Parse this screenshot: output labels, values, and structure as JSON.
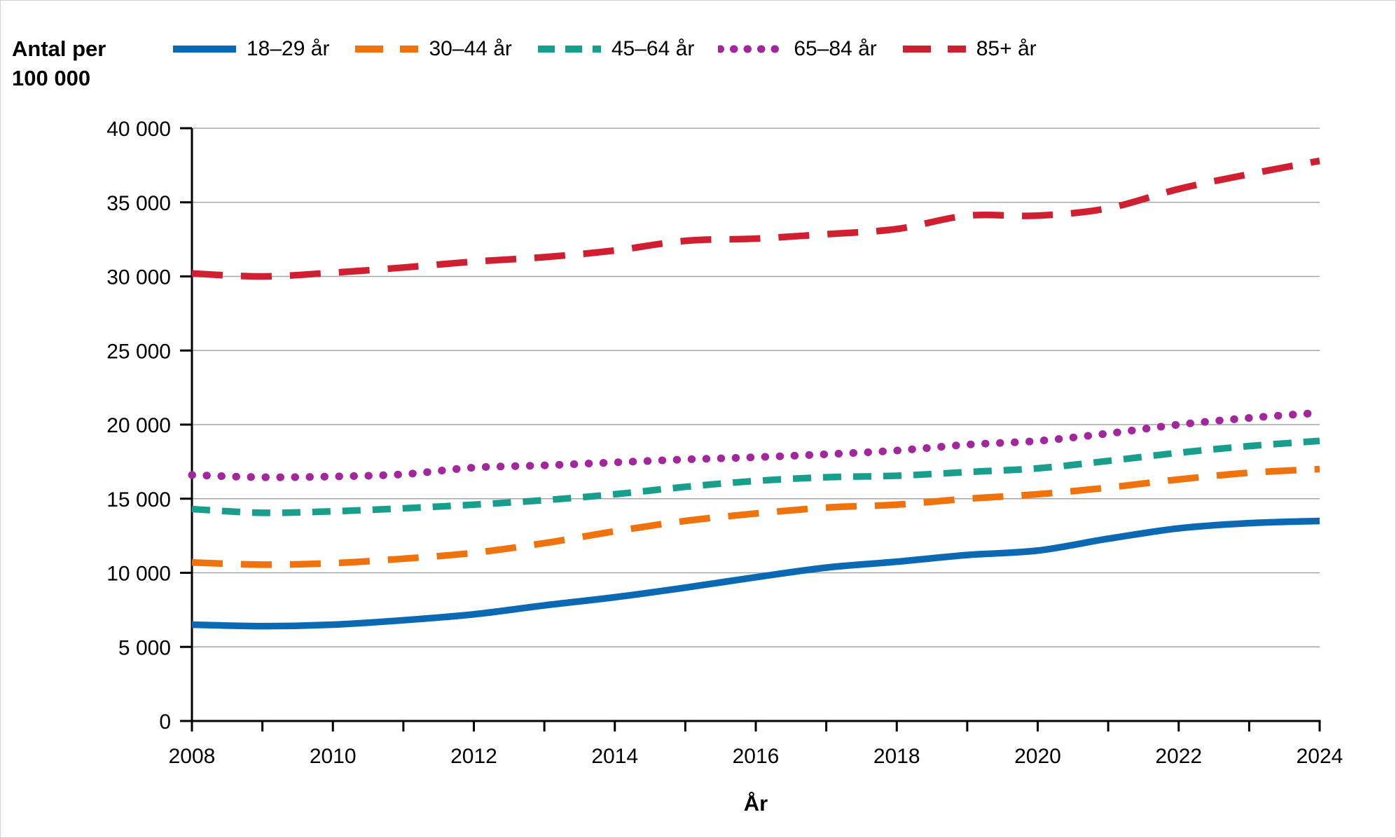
{
  "page": {
    "y_axis_title": "Antal per\n100 000",
    "x_axis_title": "År"
  },
  "chart_data": {
    "type": "line",
    "title": "",
    "xlabel": "År",
    "ylabel": "Antal per 100 000",
    "x": [
      2008,
      2009,
      2010,
      2011,
      2012,
      2013,
      2014,
      2015,
      2016,
      2017,
      2018,
      2019,
      2020,
      2021,
      2022,
      2023,
      2024
    ],
    "xtick_labels": [
      "2008",
      "2010",
      "2012",
      "2014",
      "2016",
      "2018",
      "2020",
      "2022",
      "2024"
    ],
    "ylim": [
      0,
      40000
    ],
    "ytick_step": 5000,
    "ytick_labels": [
      "0",
      "5 000",
      "10 000",
      "15 000",
      "20 000",
      "25 000",
      "30 000",
      "35 000",
      "40 000"
    ],
    "grid": "horizontal",
    "gridline_color": "#a6a6a6",
    "axis_color": "#000000",
    "legend_position": "top",
    "series": [
      {
        "name": "18–29 år",
        "color": "#0b69b3",
        "dash": "solid",
        "values": [
          6500,
          6400,
          6500,
          6800,
          7200,
          7800,
          8350,
          9000,
          9700,
          10350,
          10750,
          11200,
          11500,
          12300,
          13000,
          13350,
          13500
        ]
      },
      {
        "name": "30–44 år",
        "color": "#f0720d",
        "dash": "long-dash",
        "values": [
          10700,
          10550,
          10650,
          10950,
          11350,
          12000,
          12800,
          13500,
          14000,
          14400,
          14600,
          15000,
          15300,
          15750,
          16300,
          16750,
          17000
        ]
      },
      {
        "name": "45–64 år",
        "color": "#189e8c",
        "dash": "dash",
        "values": [
          14300,
          14050,
          14150,
          14350,
          14600,
          14900,
          15300,
          15800,
          16200,
          16450,
          16550,
          16800,
          17050,
          17550,
          18100,
          18550,
          18900
        ]
      },
      {
        "name": "65–84 år",
        "color": "#a3269c",
        "dash": "dot",
        "values": [
          16600,
          16450,
          16500,
          16650,
          17100,
          17250,
          17450,
          17650,
          17800,
          18000,
          18250,
          18650,
          18900,
          19400,
          20000,
          20450,
          20800
        ]
      },
      {
        "name": "85+ år",
        "color": "#cf1f30",
        "dash": "long-dash",
        "values": [
          30200,
          30000,
          30250,
          30600,
          31000,
          31300,
          31750,
          32400,
          32550,
          32850,
          33200,
          34100,
          34100,
          34600,
          35900,
          36900,
          37800
        ]
      }
    ]
  }
}
